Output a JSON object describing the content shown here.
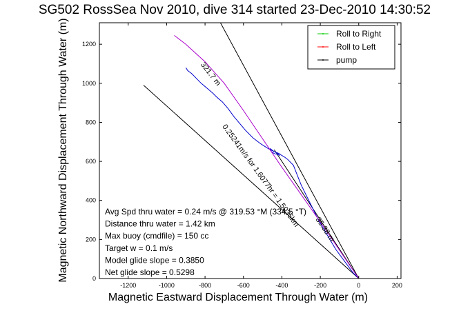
{
  "chart_data": {
    "type": "line",
    "title": "SG502 RossSea Nov 2010, dive 314 started 23-Dec-2010 14:30:52",
    "xlabel": "Magnetic Eastward Displacement Through Water (m)",
    "ylabel": "Magnetic Northward Displacement Through Water (m)",
    "xlim": [
      -1350,
      220
    ],
    "ylim": [
      0,
      1310
    ],
    "xticks": [
      -1200,
      -1000,
      -800,
      -600,
      -400,
      -200,
      0,
      200
    ],
    "yticks": [
      0,
      200,
      400,
      600,
      800,
      1000,
      1200
    ],
    "grid": false,
    "legend_position": "top-right",
    "legend": [
      {
        "label": "Roll to Right",
        "color": "#00cc00"
      },
      {
        "label": "Roll to Left",
        "color": "#ff0000"
      },
      {
        "label": "pump",
        "color": "#000000"
      }
    ],
    "series": [
      {
        "color": "#0000cc",
        "x": [
          0,
          -30,
          -60,
          -90,
          -120,
          -150,
          -180,
          -210,
          -240,
          -270,
          -300,
          -320,
          -340,
          -370,
          -390,
          -400,
          -415,
          -440,
          -460,
          -455,
          -440,
          -420,
          -410,
          -430,
          -470,
          -510,
          -550,
          -590,
          -620,
          -650,
          -680,
          -710,
          -740,
          -760,
          -790,
          -820,
          -850,
          -870,
          -890,
          -900
        ],
        "y": [
          0,
          30,
          70,
          110,
          150,
          200,
          250,
          300,
          360,
          420,
          480,
          530,
          580,
          610,
          625,
          630,
          640,
          650,
          665,
          650,
          640,
          635,
          630,
          645,
          665,
          690,
          720,
          760,
          795,
          830,
          870,
          905,
          930,
          950,
          975,
          1000,
          1030,
          1050,
          1065,
          1080
        ]
      },
      {
        "color": "#aa00cc",
        "x": [
          0,
          -100,
          -200,
          -300,
          -400,
          -500,
          -600,
          -700,
          -800,
          -900,
          -960
        ],
        "y": [
          0,
          145,
          290,
          430,
          570,
          715,
          860,
          1000,
          1110,
          1200,
          1245
        ]
      }
    ],
    "reference_lines": [
      {
        "x": [
          0,
          -1120
        ],
        "y": [
          0,
          990
        ],
        "color": "#000000"
      },
      {
        "x": [
          0,
          -720
        ],
        "y": [
          0,
          1310
        ],
        "color": "#000000"
      },
      {
        "x": [
          0,
          -440
        ],
        "y": [
          0,
          660
        ],
        "color": "#000000"
      }
    ],
    "line_labels": [
      {
        "text": "321.7 m",
        "x": -780,
        "y": 1040,
        "rotation": 52
      },
      {
        "text": "0.25241m/s for 1.6077hr = 1.5035km",
        "x": -520,
        "y": 520,
        "rotation": 54
      },
      {
        "text": "35.38 m",
        "x": -185,
        "y": 245,
        "rotation": 56
      }
    ],
    "annotations": [
      "Avg Spd thru water =  0.24 m/s @ 319.53 °M (334.5 °T)",
      "Distance thru water =  1.42 km",
      "Max buoy (cmdfile) = 150 cc",
      "Target w = 0.1 m/s",
      "Model glide slope = 0.3850",
      "Net glide slope = 0.5298"
    ]
  }
}
